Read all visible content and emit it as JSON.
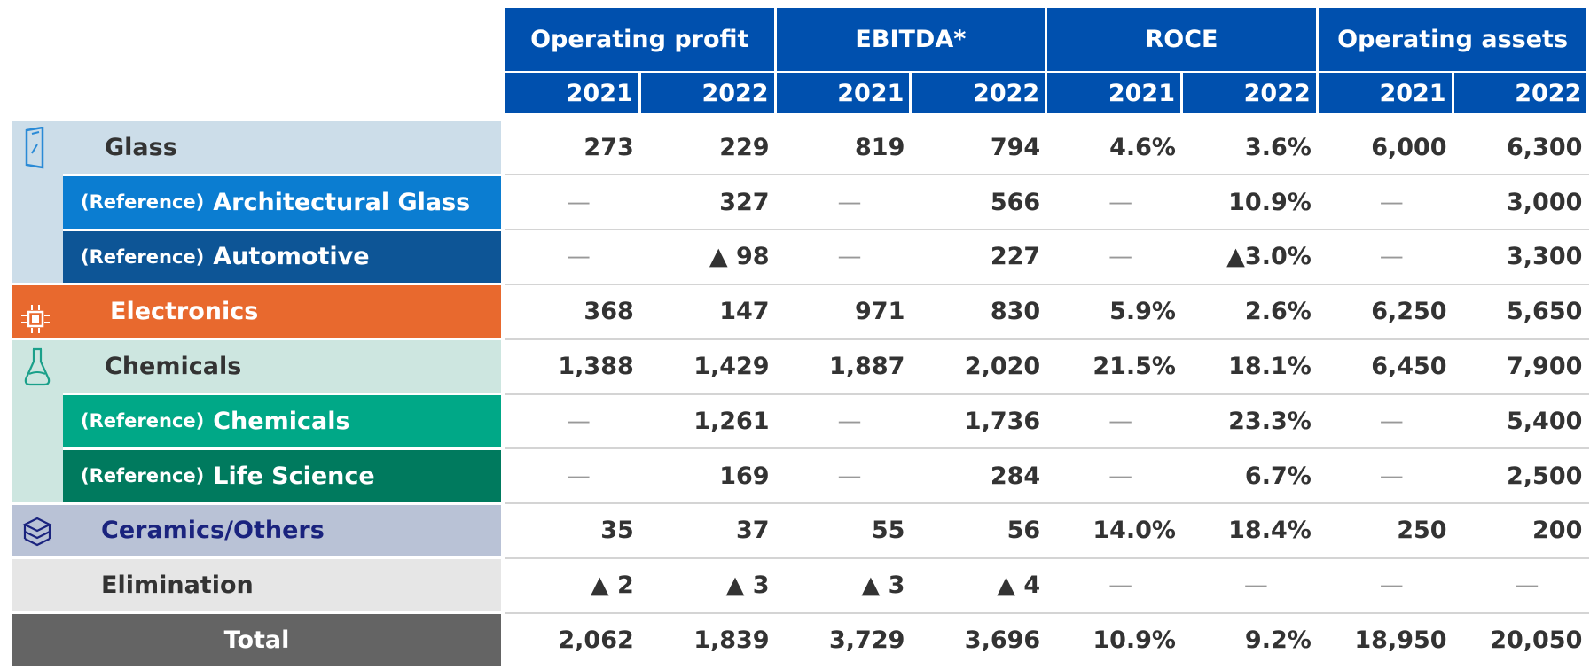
{
  "header": {
    "groups": [
      {
        "title": "Operating profit",
        "years": [
          "2021",
          "2022"
        ]
      },
      {
        "title": "EBITDA*",
        "years": [
          "2021",
          "2022"
        ]
      },
      {
        "title": "ROCE",
        "years": [
          "2021",
          "2022"
        ]
      },
      {
        "title": "Operating assets",
        "years": [
          "2021",
          "2022"
        ]
      }
    ]
  },
  "rows": [
    {
      "label": "Glass",
      "cells": [
        "273",
        "229",
        "819",
        "794",
        "4.6%",
        "3.6%",
        "6,000",
        "6,300"
      ]
    },
    {
      "prefix": "(Reference)",
      "label": "Architectural Glass",
      "cells": [
        "—",
        "327",
        "—",
        "566",
        "—",
        "10.9%",
        "—",
        "3,000"
      ]
    },
    {
      "prefix": "(Reference)",
      "label": "Automotive",
      "cells": [
        "—",
        "▲ 98",
        "—",
        "227",
        "—",
        "▲3.0%",
        "—",
        "3,300"
      ]
    },
    {
      "label": "Electronics",
      "cells": [
        "368",
        "147",
        "971",
        "830",
        "5.9%",
        "2.6%",
        "6,250",
        "5,650"
      ]
    },
    {
      "label": "Chemicals",
      "cells": [
        "1,388",
        "1,429",
        "1,887",
        "2,020",
        "21.5%",
        "18.1%",
        "6,450",
        "7,900"
      ]
    },
    {
      "prefix": "(Reference)",
      "label": "Chemicals",
      "cells": [
        "—",
        "1,261",
        "—",
        "1,736",
        "—",
        "23.3%",
        "—",
        "5,400"
      ]
    },
    {
      "prefix": "(Reference)",
      "label": "Life Science",
      "cells": [
        "—",
        "169",
        "—",
        "284",
        "—",
        "6.7%",
        "—",
        "2,500"
      ]
    },
    {
      "label": "Ceramics/Others",
      "cells": [
        "35",
        "37",
        "55",
        "56",
        "14.0%",
        "18.4%",
        "250",
        "200"
      ]
    },
    {
      "label": "Elimination",
      "cells": [
        "▲ 2",
        "▲ 3",
        "▲ 3",
        "▲ 4",
        "—",
        "—",
        "—",
        "—"
      ]
    },
    {
      "label": "Total",
      "cells": [
        "2,062",
        "1,839",
        "3,729",
        "3,696",
        "10.9%",
        "9.2%",
        "18,950",
        "20,050"
      ]
    }
  ]
}
